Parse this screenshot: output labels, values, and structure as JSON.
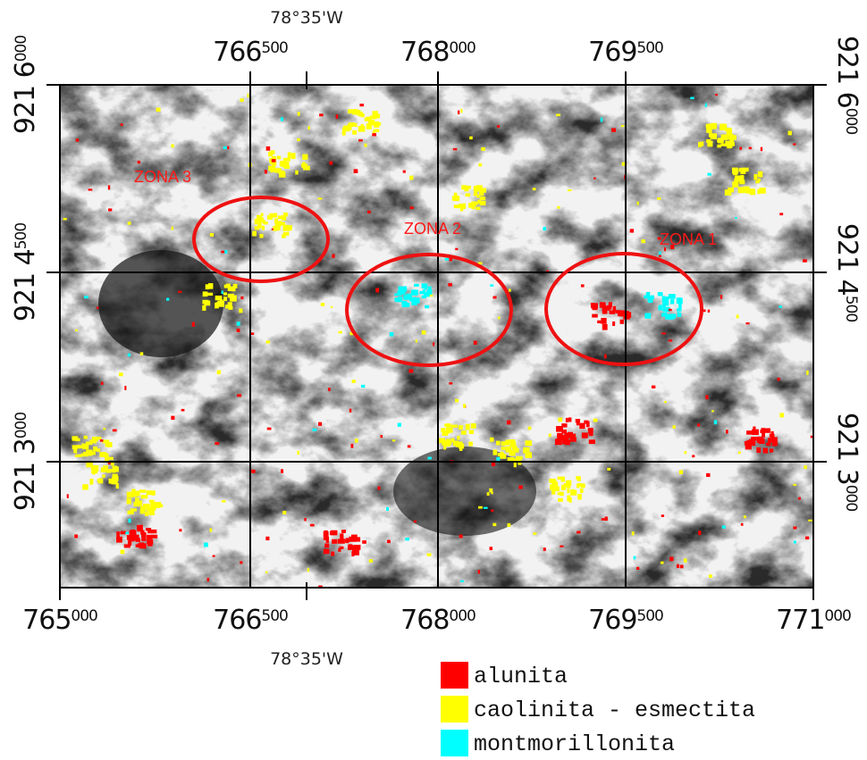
{
  "map": {
    "top_longitude": "78°35'W",
    "bottom_longitude": "78°35'W",
    "top_easting": [
      {
        "main": "766",
        "sup": "500"
      },
      {
        "main": "768",
        "sup": "000"
      },
      {
        "main": "769",
        "sup": "500"
      }
    ],
    "bottom_easting": [
      {
        "main": "765",
        "sup": "000"
      },
      {
        "main": "766",
        "sup": "500"
      },
      {
        "main": "768",
        "sup": "000"
      },
      {
        "main": "769",
        "sup": "500"
      },
      {
        "main": "771",
        "sup": "000"
      }
    ],
    "left_northing": [
      {
        "main": "921 6",
        "sup": "000"
      },
      {
        "main": "921 4",
        "sup": "500"
      },
      {
        "main": "921 3",
        "sup": "000"
      }
    ],
    "right_northing": [
      {
        "main": "921 6",
        "sup": "000"
      },
      {
        "main": "921 4",
        "sup": "500"
      },
      {
        "main": "921 3",
        "sup": "000"
      }
    ],
    "zones": [
      "ZONA 3",
      "ZONA 2",
      "ZONA 1"
    ],
    "legend": [
      {
        "label": "alunita",
        "color": "#ff0000"
      },
      {
        "label": "caolinita - esmectita",
        "color": "#ffff00"
      },
      {
        "label": "montmorillonita",
        "color": "#00ffff"
      }
    ]
  }
}
